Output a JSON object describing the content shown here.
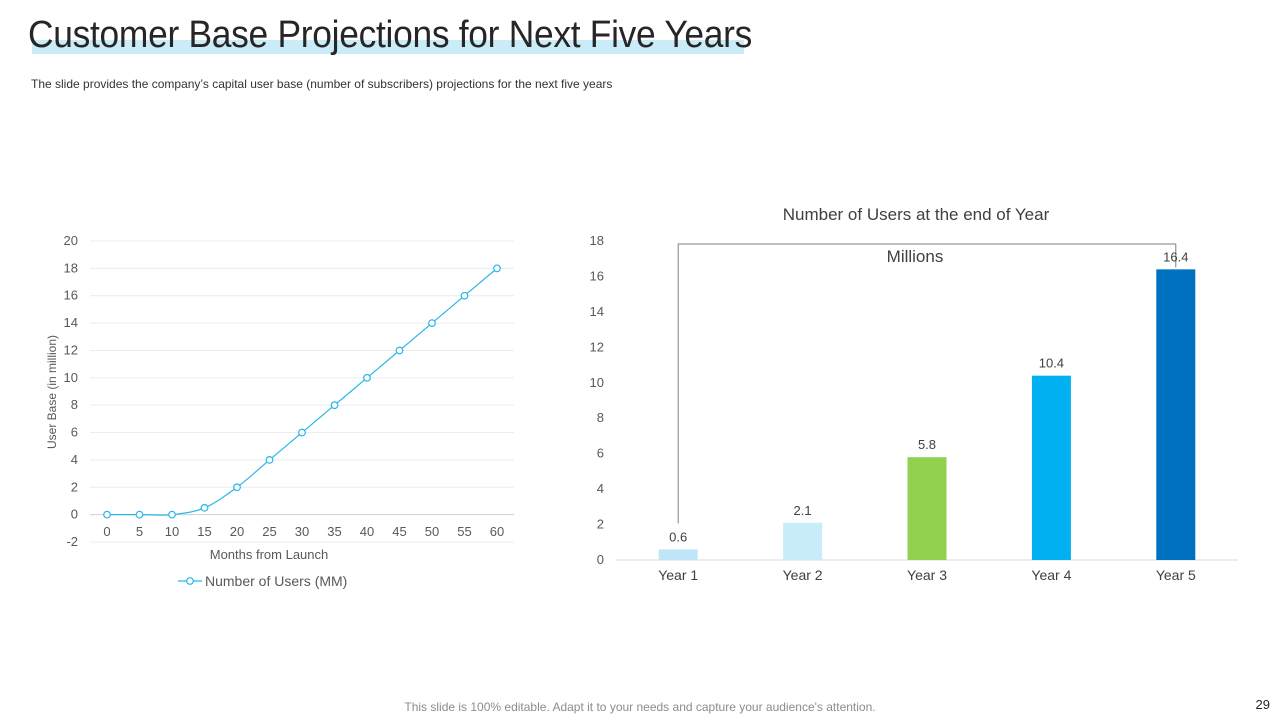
{
  "slide": {
    "title": "Customer Base Projections for Next Five Years",
    "subtitle": "The slide provides  the company’s capital user base (number of subscribers) projections for the next five  years",
    "footer": "This slide is 100% editable. Adapt it to your needs and capture your audience's attention.",
    "page_number": "29",
    "highlight_color": "#c9ecf8"
  },
  "chart_data": [
    {
      "type": "line",
      "title": "",
      "xlabel": "Months from Launch",
      "ylabel": "User Base (in million)",
      "x": [
        0,
        5,
        10,
        15,
        20,
        25,
        30,
        35,
        40,
        45,
        50,
        55,
        60
      ],
      "series": [
        {
          "name": "Number of Users (MM)",
          "values": [
            0,
            0,
            0,
            0.5,
            2,
            4,
            6,
            8,
            10,
            12,
            14,
            16,
            18
          ],
          "color": "#29b7e8"
        }
      ],
      "ylim": [
        -2,
        20
      ],
      "yticks": [
        -2,
        0,
        2,
        4,
        6,
        8,
        10,
        12,
        14,
        16,
        18,
        20
      ],
      "grid": true,
      "legend": "bottom"
    },
    {
      "type": "bar",
      "title": "Number of Users at the end of Year",
      "annotation": "Millions",
      "categories": [
        "Year 1",
        "Year 2",
        "Year 3",
        "Year 4",
        "Year 5"
      ],
      "values": [
        0.6,
        2.1,
        5.8,
        10.4,
        16.4
      ],
      "value_labels": [
        "0.6",
        "2.1",
        "5.8",
        "10.4",
        "16.4"
      ],
      "colors": [
        "#bfe6f8",
        "#c9ecfa",
        "#92d050",
        "#00b0f0",
        "#0070c0"
      ],
      "ylim": [
        0,
        18
      ],
      "yticks": [
        0,
        2,
        4,
        6,
        8,
        10,
        12,
        14,
        16,
        18
      ],
      "grid": false,
      "legend": "none"
    }
  ]
}
